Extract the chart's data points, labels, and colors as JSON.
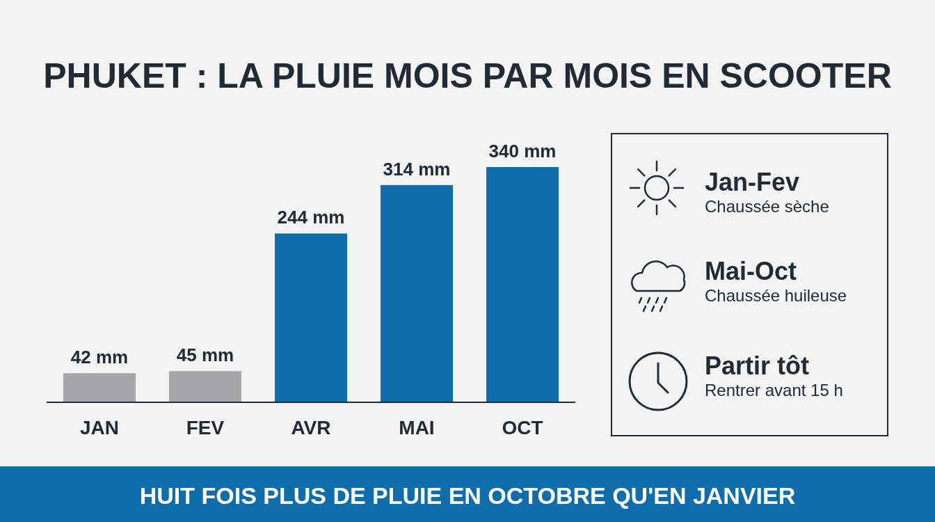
{
  "chart_data": [
    {
      "type": "bar",
      "title": "PHUKET : LA PLUIE MOIS PAR MOIS EN SCOOTER",
      "categories": [
        "JAN",
        "FEV",
        "AVR",
        "MAI",
        "OCT"
      ],
      "values": [
        42,
        45,
        244,
        314,
        340
      ],
      "colors": [
        "#a7a7aa",
        "#a7a7aa",
        "#0f6dab",
        "#0f6dab",
        "#0f6dab"
      ],
      "value_labels": [
        "42 mm",
        "45 mm",
        "244 mm",
        "314 mm",
        "340 mm"
      ],
      "annotations": [
        "HUIT FOIS PLUS DE PLUIE EN OCTOBRE QU'EN JANVIER"
      ]
    },
    {
      "type": "other",
      "annotations": [
        "Jan-Fev",
        "Chaussée sèche",
        "Mai-Oct",
        "Chaussée huileuse",
        "Partir tôt",
        "Rentrer avant 15 h"
      ]
    }
  ]
}
